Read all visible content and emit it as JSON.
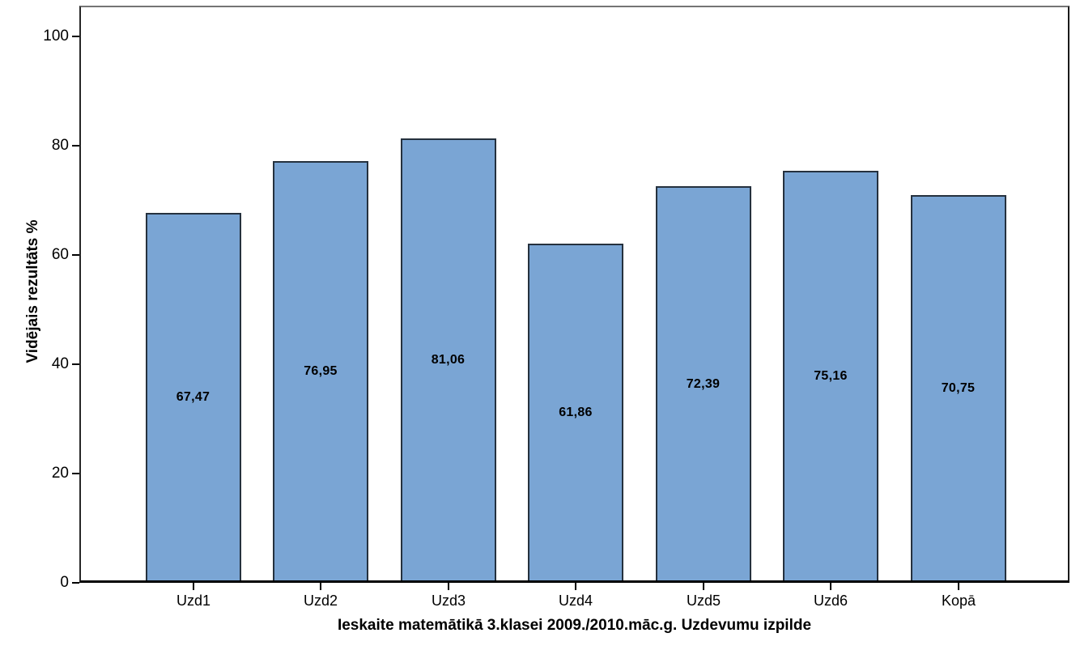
{
  "chart_data": {
    "type": "bar",
    "title": "",
    "xlabel": "Ieskaite matemātikā 3.klasei 2009./2010.māc.g. Uzdevumu izpilde",
    "ylabel": "Vidējais rezultāts %",
    "categories": [
      "Uzd1",
      "Uzd2",
      "Uzd3",
      "Uzd4",
      "Uzd5",
      "Uzd6",
      "Kopā"
    ],
    "values": [
      67.47,
      76.95,
      81.06,
      61.86,
      72.39,
      75.16,
      70.75
    ],
    "value_labels": [
      "67,47",
      "76,95",
      "81,06",
      "61,86",
      "72,39",
      "75,16",
      "70,75"
    ],
    "yticks": [
      0,
      20,
      40,
      60,
      80,
      100
    ],
    "ylim": [
      0,
      105.6
    ],
    "grid": false,
    "legend_position": "none",
    "decimal_separator": ",",
    "bar_fill_color": "#7aa5d4",
    "bar_border_color": "#25313e",
    "axis_color": "#000000",
    "background_color": "#ffffff"
  }
}
